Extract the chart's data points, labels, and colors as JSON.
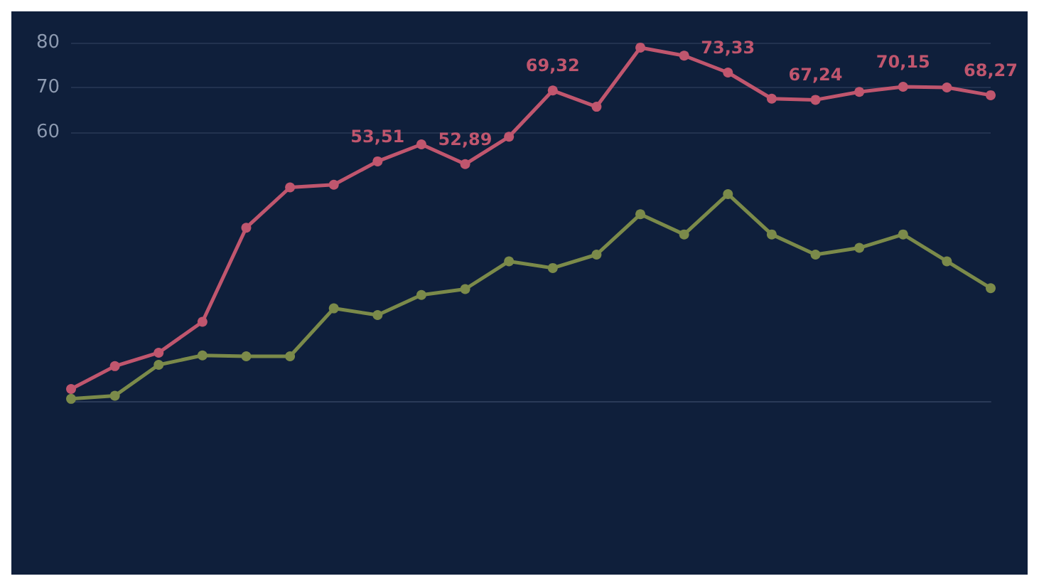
{
  "chart_data": {
    "type": "line",
    "categories": [
      null,
      null,
      null,
      null,
      null,
      null,
      null,
      null,
      null,
      null,
      null,
      null,
      null,
      null,
      null,
      null,
      null,
      null,
      null,
      null,
      null,
      null
    ],
    "series": [
      {
        "color": "#c0566e",
        "values": [
          2.7,
          7.8,
          10.8,
          17.7,
          38.7,
          47.7,
          48.3,
          53.51,
          57.3,
          52.89,
          59,
          69.32,
          65.7,
          78.9,
          77.1,
          73.33,
          67.5,
          67.24,
          69,
          70.15,
          70,
          68.27
        ],
        "value_labels": [
          null,
          null,
          null,
          null,
          null,
          null,
          null,
          "53,51",
          null,
          "52,89",
          null,
          "69,32",
          null,
          null,
          null,
          "73,33",
          null,
          "67,24",
          null,
          "70,15",
          null,
          "68,27"
        ]
      },
      {
        "color": "#7b8a4a",
        "values": [
          0.5,
          1.2,
          8.1,
          10.2,
          10,
          10,
          20.7,
          19.2,
          23.7,
          25,
          31.2,
          29.7,
          32.7,
          41.7,
          37.2,
          46.2,
          37.2,
          32.7,
          34.2,
          37.2,
          31.2,
          25.2
        ]
      }
    ],
    "ylim": [
      0,
      80
    ],
    "yticks": [
      60,
      70,
      80
    ],
    "grid": "y",
    "marker": "circle"
  }
}
